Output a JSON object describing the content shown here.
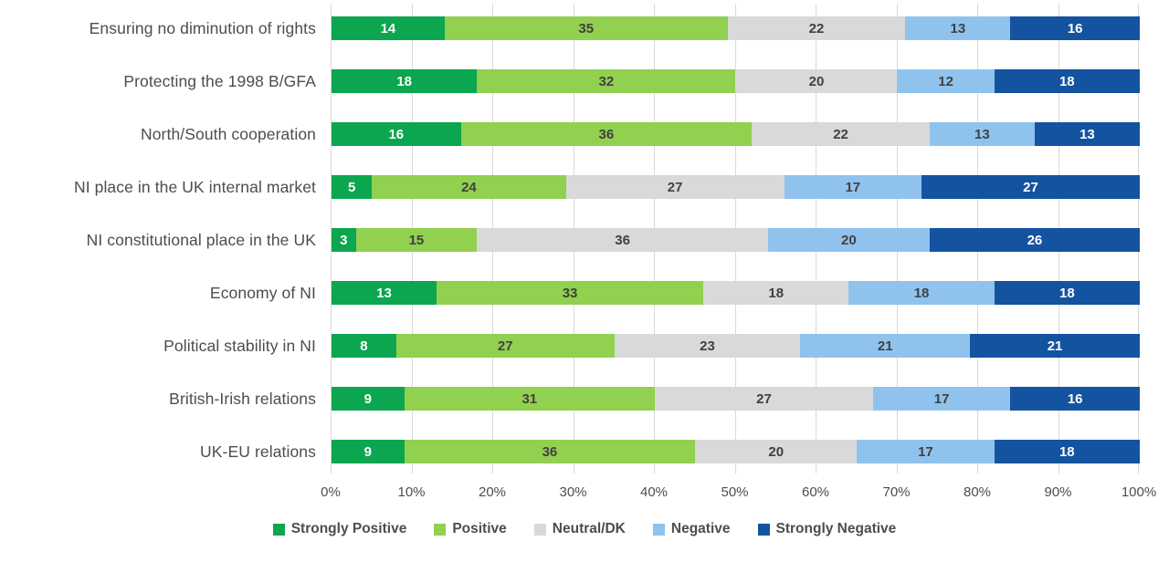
{
  "chart_data": {
    "type": "bar",
    "orientation": "horizontal-stacked",
    "title": "",
    "xlabel": "",
    "ylabel": "",
    "xlim": [
      0,
      100
    ],
    "grid": "vertical",
    "legend_position": "bottom",
    "x_ticks": [
      "0%",
      "10%",
      "20%",
      "30%",
      "40%",
      "50%",
      "60%",
      "70%",
      "80%",
      "90%",
      "100%"
    ],
    "categories": [
      "Ensuring no diminution of rights",
      "Protecting the 1998 B/GFA",
      "North/South cooperation",
      "NI place in the UK internal market",
      "NI constitutional place in the UK",
      "Economy of NI",
      "Political stability in NI",
      "British-Irish relations",
      "UK-EU relations"
    ],
    "series": [
      {
        "name": "Strongly Positive",
        "color": "#0BA64F",
        "label_color": "#FFFFFF",
        "values": [
          14,
          18,
          16,
          5,
          3,
          13,
          8,
          9,
          9
        ]
      },
      {
        "name": "Positive",
        "color": "#92D050",
        "label_color": "#404040",
        "values": [
          35,
          32,
          36,
          24,
          15,
          33,
          27,
          31,
          36
        ]
      },
      {
        "name": "Neutral/DK",
        "color": "#D9D9D9",
        "label_color": "#404040",
        "values": [
          22,
          20,
          22,
          27,
          36,
          18,
          23,
          27,
          20
        ]
      },
      {
        "name": "Negative",
        "color": "#8FC3EE",
        "label_color": "#404040",
        "values": [
          13,
          12,
          13,
          17,
          20,
          18,
          21,
          17,
          17
        ]
      },
      {
        "name": "Strongly Negative",
        "color": "#1453A0",
        "label_color": "#FFFFFF",
        "values": [
          16,
          18,
          13,
          27,
          26,
          18,
          21,
          16,
          18
        ]
      }
    ]
  },
  "colors": {
    "background": "#FFFFFF",
    "gridline": "#D9D9D9",
    "axis_text": "#4D4D4D",
    "category_text": "#4D4D4D",
    "legend_text": "#4D4D4D"
  }
}
